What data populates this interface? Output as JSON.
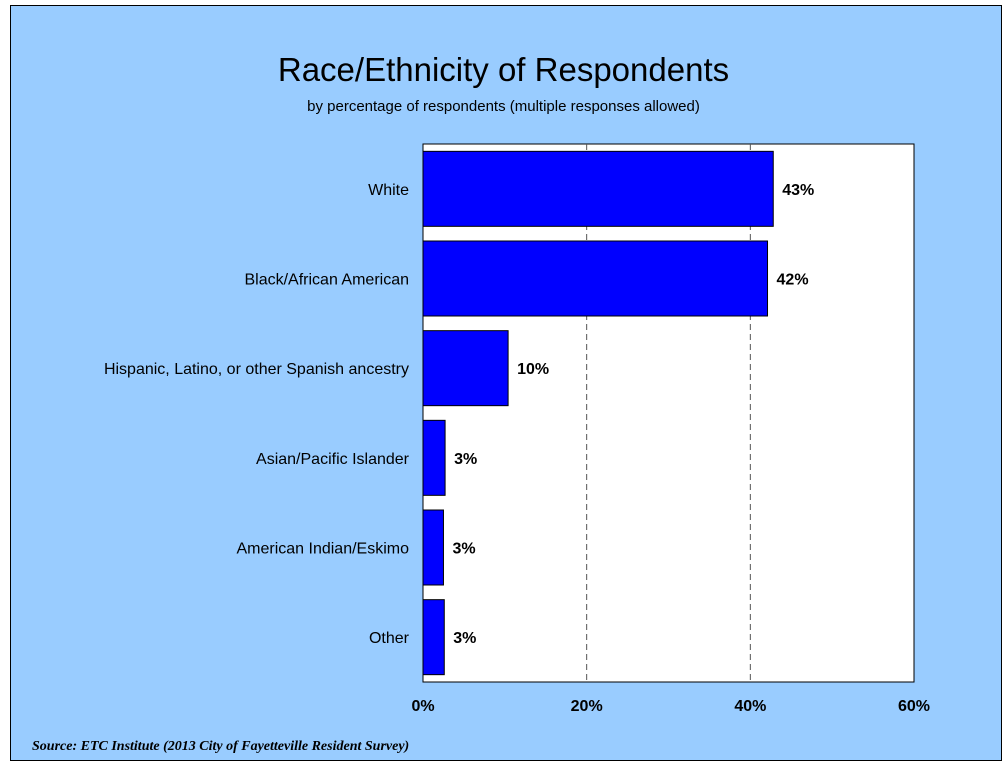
{
  "chart_data": {
    "type": "bar",
    "orientation": "horizontal",
    "title": "Race/Ethnicity of Respondents",
    "subtitle": "by percentage of respondents (multiple responses allowed)",
    "categories": [
      "White",
      "Black/African American",
      "Hispanic, Latino, or other Spanish ancestry",
      "Asian/Pacific Islander",
      "American Indian/Eskimo",
      "Other"
    ],
    "values": [
      43,
      42,
      10,
      3,
      3,
      3
    ],
    "precise_values": [
      42.8,
      42.1,
      10.4,
      2.7,
      2.5,
      2.6
    ],
    "data_labels": [
      "43%",
      "42%",
      "10%",
      "3%",
      "3%",
      "3%"
    ],
    "xlim": [
      0,
      60
    ],
    "x_ticks": [
      0,
      20,
      40,
      60
    ],
    "x_tick_labels": [
      "0%",
      "20%",
      "40%",
      "60%"
    ],
    "grid": "vertical dashed",
    "legend": "none",
    "xlabel": "",
    "ylabel": ""
  },
  "colors": {
    "background": "#99ccff",
    "plot_area": "#ffffff",
    "bar_fill": "#0000ff",
    "bar_stroke": "#000000",
    "grid": "#555555"
  },
  "source": "Source:  ETC Institute (2013 City of Fayetteville Resident Survey)"
}
